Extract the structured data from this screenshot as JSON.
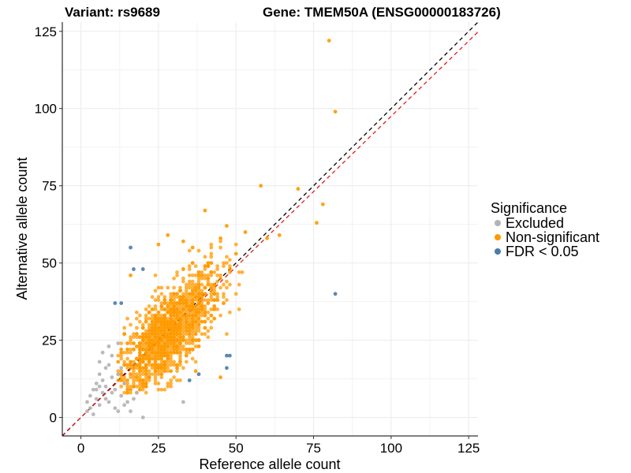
{
  "title": {
    "variant": "Variant: rs9689",
    "gene": "Gene: TMEM50A (ENSG00000183726)"
  },
  "chart_data": {
    "type": "scatter",
    "xlabel": "Reference allele count",
    "ylabel": "Alternative allele count",
    "xlim": [
      -6,
      128
    ],
    "ylim": [
      -6,
      128
    ],
    "xticks": [
      0,
      25,
      50,
      75,
      100,
      125
    ],
    "yticks": [
      0,
      25,
      50,
      75,
      100,
      125
    ],
    "grid": true,
    "legend_position": "right",
    "legend": {
      "title": "Significance",
      "items": [
        {
          "label": "Excluded",
          "color": "#b3b3b3"
        },
        {
          "label": "Non-significant",
          "color": "#ff9900"
        },
        {
          "label": "FDR < 0.05",
          "color": "#4a7bab"
        }
      ]
    },
    "reference_lines": [
      {
        "kind": "identity",
        "slope": 1,
        "intercept": 0,
        "color": "#000000",
        "style": "dashed"
      },
      {
        "kind": "fit",
        "slope": 0.975,
        "intercept": 0,
        "color": "#e31a1c",
        "style": "dashed"
      }
    ],
    "series": [
      {
        "name": "Excluded",
        "color": "#b3b3b3",
        "points": [
          [
            2,
            5
          ],
          [
            3,
            7
          ],
          [
            4,
            9
          ],
          [
            5,
            6
          ],
          [
            5,
            11
          ],
          [
            6,
            4
          ],
          [
            6,
            14
          ],
          [
            7,
            8
          ],
          [
            7,
            12
          ],
          [
            8,
            16
          ],
          [
            8,
            10
          ],
          [
            9,
            5
          ],
          [
            10,
            13
          ],
          [
            10,
            20
          ],
          [
            11,
            9
          ],
          [
            12,
            24
          ],
          [
            12,
            2
          ],
          [
            13,
            7
          ],
          [
            14,
            11
          ],
          [
            3,
            3
          ],
          [
            4,
            1
          ],
          [
            6,
            18
          ],
          [
            7,
            21
          ],
          [
            9,
            17
          ],
          [
            11,
            3
          ],
          [
            15,
            5
          ],
          [
            16,
            2
          ],
          [
            18,
            8
          ],
          [
            20,
            0
          ],
          [
            33,
            5
          ],
          [
            5,
            9
          ],
          [
            8,
            6
          ],
          [
            10,
            8
          ],
          [
            12,
            14
          ],
          [
            14,
            4
          ],
          [
            17,
            6
          ],
          [
            2,
            2
          ],
          [
            9,
            23
          ],
          [
            6,
            10
          ],
          [
            13,
            16
          ]
        ]
      },
      {
        "name": "Non-significant",
        "color": "#ff9900",
        "points": [
          [
            80,
            122
          ],
          [
            82,
            99
          ],
          [
            58,
            75
          ],
          [
            70,
            74
          ],
          [
            78,
            69
          ],
          [
            76,
            63
          ],
          [
            40,
            67
          ],
          [
            47,
            62
          ],
          [
            53,
            60
          ],
          [
            60,
            58
          ],
          [
            64,
            59
          ],
          [
            16,
            46
          ],
          [
            14,
            27
          ],
          [
            13,
            22
          ],
          [
            12,
            18
          ],
          [
            15,
            12
          ],
          [
            17,
            10
          ],
          [
            50,
            53
          ],
          [
            45,
            58
          ],
          [
            25,
            56
          ],
          [
            28,
            59
          ],
          [
            33,
            57
          ],
          [
            36,
            55
          ],
          [
            37,
            15
          ],
          [
            45,
            13
          ]
        ]
      },
      {
        "name": "FDR < 0.05",
        "color": "#4a7bab",
        "points": [
          [
            16,
            55
          ],
          [
            17,
            48
          ],
          [
            20,
            48
          ],
          [
            11,
            37
          ],
          [
            13,
            37
          ],
          [
            82,
            40
          ],
          [
            47,
            20
          ],
          [
            48,
            20
          ],
          [
            47,
            16
          ],
          [
            35,
            12
          ],
          [
            38,
            14
          ]
        ]
      }
    ]
  }
}
